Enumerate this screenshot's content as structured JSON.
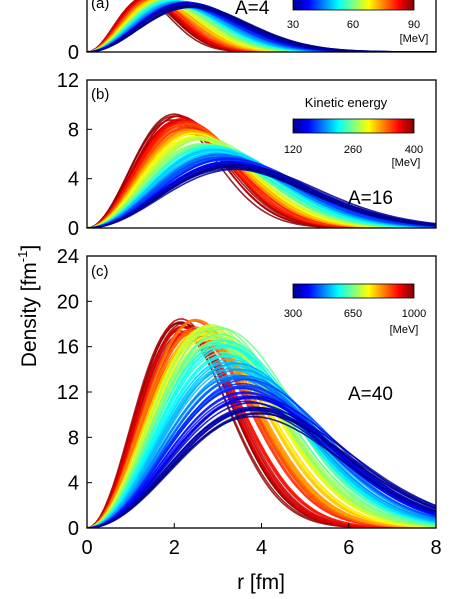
{
  "figure": {
    "xlabel": "r [fm]",
    "ylabel_main": "Density [fm",
    "ylabel_sup": "-1",
    "ylabel_close": "]"
  },
  "chart_data": [
    {
      "type": "line",
      "panel": "(a)",
      "annotation": "A=4",
      "xlim": [
        0,
        8
      ],
      "ylim": [
        0,
        3
      ],
      "y_ticks": [
        0
      ],
      "x_ticks": [],
      "colorbar": {
        "title": "",
        "ticks": [
          "30",
          "60",
          "90"
        ],
        "unit": "[MeV]",
        "range": [
          30,
          90
        ],
        "colormap": "jet"
      },
      "series": [
        {
          "kinetic_energy": 30,
          "peak_r": 2.4,
          "peak_density": 2.5
        },
        {
          "kinetic_energy": 90,
          "peak_r": 1.3,
          "peak_density": 2.9
        }
      ]
    },
    {
      "type": "line",
      "panel": "(b)",
      "annotation": "A=16",
      "xlim": [
        0,
        8
      ],
      "ylim": [
        0,
        12
      ],
      "y_ticks": [
        0,
        4,
        8,
        12
      ],
      "x_ticks": [],
      "colorbar": {
        "title": "Kinetic energy",
        "ticks": [
          "120",
          "260",
          "400"
        ],
        "unit": "[MeV]",
        "range": [
          120,
          400
        ],
        "colormap": "jet"
      },
      "series": [
        {
          "kinetic_energy": 120,
          "peak_r": 3.4,
          "peak_density": 4.8
        },
        {
          "kinetic_energy": 260,
          "peak_r": 2.7,
          "peak_density": 6.8
        },
        {
          "kinetic_energy": 400,
          "peak_r": 2.0,
          "peak_density": 9.0
        }
      ]
    },
    {
      "type": "line",
      "panel": "(c)",
      "annotation": "A=40",
      "xlim": [
        0,
        8
      ],
      "ylim": [
        0,
        24
      ],
      "y_ticks": [
        0,
        4,
        8,
        12,
        16,
        20,
        24
      ],
      "x_ticks": [
        0,
        2,
        4,
        6,
        8
      ],
      "colorbar": {
        "title": "",
        "ticks": [
          "300",
          "650",
          "1000"
        ],
        "unit": "[MeV]",
        "range": [
          300,
          1000
        ],
        "colormap": "jet"
      },
      "series": [
        {
          "kinetic_energy": 300,
          "peak_r": 3.9,
          "peak_density": 10.0
        },
        {
          "kinetic_energy": 650,
          "peak_r": 3.0,
          "peak_density": 17.0
        },
        {
          "kinetic_energy": 1000,
          "peak_r": 2.1,
          "peak_density": 18.0
        }
      ]
    }
  ]
}
